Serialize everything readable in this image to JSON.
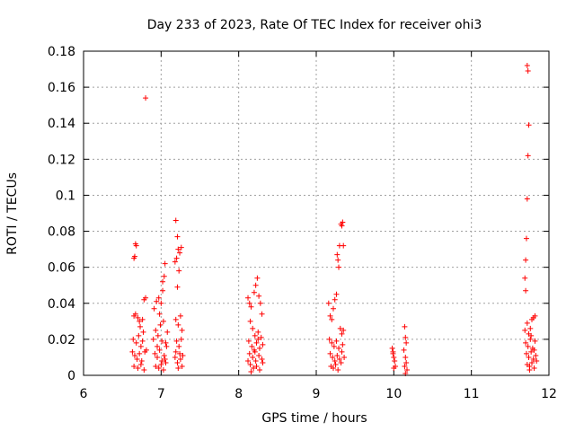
{
  "chart_data": {
    "type": "scatter",
    "title": "Day 233 of 2023, Rate Of TEC Index for receiver ohi3",
    "xlabel": "GPS time / hours",
    "ylabel": "ROTI / TECUs",
    "xlim": [
      6,
      12
    ],
    "ylim": [
      0,
      0.18
    ],
    "xticks": [
      "6",
      "7",
      "8",
      "9",
      "10",
      "11",
      "12"
    ],
    "yticks": [
      "0",
      "0.02",
      "0.04",
      "0.06",
      "0.08",
      "0.1",
      "0.12",
      "0.14",
      "0.16",
      "0.18"
    ],
    "grid": true,
    "marker": "+",
    "color": "#ff0000",
    "series": [
      {
        "points": [
          [
            6.65,
            0.065
          ],
          [
            6.66,
            0.066
          ],
          [
            6.67,
            0.073
          ],
          [
            6.68,
            0.072
          ],
          [
            6.8,
            0.154
          ],
          [
            6.65,
            0.033
          ],
          [
            6.67,
            0.034
          ],
          [
            6.7,
            0.032
          ],
          [
            6.72,
            0.03
          ],
          [
            6.76,
            0.031
          ],
          [
            6.78,
            0.042
          ],
          [
            6.8,
            0.043
          ],
          [
            6.64,
            0.02
          ],
          [
            6.68,
            0.018
          ],
          [
            6.71,
            0.022
          ],
          [
            6.74,
            0.016
          ],
          [
            6.77,
            0.024
          ],
          [
            6.66,
            0.011
          ],
          [
            6.69,
            0.009
          ],
          [
            6.72,
            0.012
          ],
          [
            6.75,
            0.008
          ],
          [
            6.79,
            0.013
          ],
          [
            6.65,
            0.005
          ],
          [
            6.7,
            0.004
          ],
          [
            6.74,
            0.006
          ],
          [
            6.78,
            0.003
          ],
          [
            6.81,
            0.014
          ],
          [
            6.63,
            0.013
          ],
          [
            6.73,
            0.027
          ],
          [
            6.76,
            0.019
          ],
          [
            6.91,
            0.037
          ],
          [
            6.94,
            0.041
          ],
          [
            6.97,
            0.043
          ],
          [
            7.0,
            0.04
          ],
          [
            7.02,
            0.052
          ],
          [
            7.04,
            0.055
          ],
          [
            7.05,
            0.062
          ],
          [
            6.93,
            0.025
          ],
          [
            6.96,
            0.022
          ],
          [
            6.99,
            0.028
          ],
          [
            7.03,
            0.03
          ],
          [
            7.06,
            0.018
          ],
          [
            6.92,
            0.012
          ],
          [
            6.95,
            0.01
          ],
          [
            6.98,
            0.014
          ],
          [
            7.01,
            0.008
          ],
          [
            7.04,
            0.011
          ],
          [
            7.07,
            0.016
          ],
          [
            6.93,
            0.005
          ],
          [
            6.97,
            0.004
          ],
          [
            7.0,
            0.006
          ],
          [
            7.03,
            0.003
          ],
          [
            7.06,
            0.007
          ],
          [
            6.9,
            0.02
          ],
          [
            7.08,
            0.024
          ],
          [
            6.98,
            0.034
          ],
          [
            7.02,
            0.047
          ],
          [
            7.05,
            0.009
          ],
          [
            6.95,
            0.016
          ],
          [
            7.01,
            0.019
          ],
          [
            7.19,
            0.086
          ],
          [
            7.21,
            0.077
          ],
          [
            7.22,
            0.07
          ],
          [
            7.2,
            0.065
          ],
          [
            7.18,
            0.063
          ],
          [
            7.24,
            0.068
          ],
          [
            7.26,
            0.071
          ],
          [
            7.23,
            0.058
          ],
          [
            7.21,
            0.049
          ],
          [
            7.19,
            0.031
          ],
          [
            7.22,
            0.028
          ],
          [
            7.25,
            0.033
          ],
          [
            7.27,
            0.025
          ],
          [
            7.2,
            0.019
          ],
          [
            7.23,
            0.016
          ],
          [
            7.26,
            0.02
          ],
          [
            7.18,
            0.01
          ],
          [
            7.21,
            0.007
          ],
          [
            7.24,
            0.012
          ],
          [
            7.27,
            0.005
          ],
          [
            7.22,
            0.004
          ],
          [
            7.25,
            0.009
          ],
          [
            7.19,
            0.013
          ],
          [
            7.28,
            0.011
          ],
          [
            8.12,
            0.043
          ],
          [
            8.14,
            0.04
          ],
          [
            8.16,
            0.038
          ],
          [
            8.2,
            0.046
          ],
          [
            8.22,
            0.05
          ],
          [
            8.24,
            0.054
          ],
          [
            8.26,
            0.044
          ],
          [
            8.28,
            0.04
          ],
          [
            8.3,
            0.034
          ],
          [
            8.15,
            0.03
          ],
          [
            8.18,
            0.026
          ],
          [
            8.21,
            0.022
          ],
          [
            8.25,
            0.024
          ],
          [
            8.29,
            0.021
          ],
          [
            8.13,
            0.019
          ],
          [
            8.17,
            0.016
          ],
          [
            8.2,
            0.014
          ],
          [
            8.23,
            0.018
          ],
          [
            8.27,
            0.015
          ],
          [
            8.31,
            0.017
          ],
          [
            8.14,
            0.012
          ],
          [
            8.18,
            0.01
          ],
          [
            8.22,
            0.008
          ],
          [
            8.26,
            0.011
          ],
          [
            8.3,
            0.009
          ],
          [
            8.15,
            0.006
          ],
          [
            8.19,
            0.004
          ],
          [
            8.23,
            0.005
          ],
          [
            8.27,
            0.003
          ],
          [
            8.31,
            0.007
          ],
          [
            8.16,
            0.002
          ],
          [
            8.21,
            0.013
          ],
          [
            8.25,
            0.02
          ],
          [
            8.12,
            0.008
          ],
          [
            9.16,
            0.04
          ],
          [
            9.18,
            0.033
          ],
          [
            9.2,
            0.031
          ],
          [
            9.22,
            0.037
          ],
          [
            9.24,
            0.042
          ],
          [
            9.26,
            0.045
          ],
          [
            9.27,
            0.067
          ],
          [
            9.28,
            0.064
          ],
          [
            9.3,
            0.072
          ],
          [
            9.32,
            0.084
          ],
          [
            9.33,
            0.083
          ],
          [
            9.34,
            0.085
          ],
          [
            9.35,
            0.072
          ],
          [
            9.29,
            0.06
          ],
          [
            9.31,
            0.026
          ],
          [
            9.33,
            0.023
          ],
          [
            9.35,
            0.025
          ],
          [
            9.17,
            0.02
          ],
          [
            9.2,
            0.018
          ],
          [
            9.23,
            0.016
          ],
          [
            9.26,
            0.019
          ],
          [
            9.29,
            0.015
          ],
          [
            9.34,
            0.017
          ],
          [
            9.18,
            0.012
          ],
          [
            9.21,
            0.01
          ],
          [
            9.24,
            0.008
          ],
          [
            9.27,
            0.011
          ],
          [
            9.3,
            0.009
          ],
          [
            9.33,
            0.013
          ],
          [
            9.19,
            0.005
          ],
          [
            9.22,
            0.004
          ],
          [
            9.25,
            0.006
          ],
          [
            9.28,
            0.003
          ],
          [
            9.32,
            0.007
          ],
          [
            9.36,
            0.01
          ],
          [
            9.98,
            0.015
          ],
          [
            9.99,
            0.012
          ],
          [
            10.0,
            0.01
          ],
          [
            10.01,
            0.008
          ],
          [
            10.02,
            0.005
          ],
          [
            10.0,
            0.004
          ],
          [
            9.99,
            0.013
          ],
          [
            10.14,
            0.027
          ],
          [
            10.15,
            0.021
          ],
          [
            10.16,
            0.018
          ],
          [
            10.13,
            0.014
          ],
          [
            10.15,
            0.01
          ],
          [
            10.16,
            0.007
          ],
          [
            10.14,
            0.005
          ],
          [
            10.17,
            0.003
          ],
          [
            10.15,
            0.001
          ],
          [
            11.72,
            0.172
          ],
          [
            11.73,
            0.169
          ],
          [
            11.74,
            0.139
          ],
          [
            11.73,
            0.122
          ],
          [
            11.72,
            0.098
          ],
          [
            11.71,
            0.076
          ],
          [
            11.7,
            0.064
          ],
          [
            11.69,
            0.054
          ],
          [
            11.7,
            0.047
          ],
          [
            11.72,
            0.029
          ],
          [
            11.74,
            0.023
          ],
          [
            11.76,
            0.026
          ],
          [
            11.78,
            0.031
          ],
          [
            11.8,
            0.032
          ],
          [
            11.82,
            0.033
          ],
          [
            11.7,
            0.018
          ],
          [
            11.73,
            0.016
          ],
          [
            11.76,
            0.02
          ],
          [
            11.79,
            0.015
          ],
          [
            11.82,
            0.019
          ],
          [
            11.71,
            0.012
          ],
          [
            11.74,
            0.01
          ],
          [
            11.77,
            0.013
          ],
          [
            11.8,
            0.009
          ],
          [
            11.83,
            0.011
          ],
          [
            11.72,
            0.006
          ],
          [
            11.75,
            0.005
          ],
          [
            11.78,
            0.007
          ],
          [
            11.81,
            0.004
          ],
          [
            11.84,
            0.008
          ],
          [
            11.69,
            0.025
          ],
          [
            11.77,
            0.022
          ],
          [
            11.81,
            0.014
          ],
          [
            11.75,
            0.003
          ]
        ]
      }
    ]
  }
}
